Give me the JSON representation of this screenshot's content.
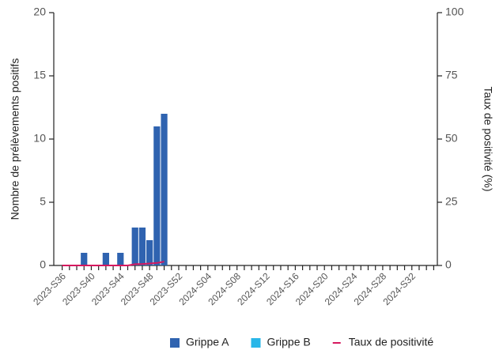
{
  "chart_data": {
    "type": "bar",
    "y_label": "Nombre de prélèvements positifs",
    "y2_label": "Taux de positivité (%)",
    "categories": [
      "2023-S36",
      null,
      null,
      null,
      "2023-S40",
      null,
      null,
      null,
      "2023-S44",
      null,
      null,
      null,
      "2023-S48",
      null,
      null,
      null,
      "2023-S52",
      null,
      null,
      null,
      "2024-S04",
      null,
      null,
      null,
      "2024-S08",
      null,
      null,
      null,
      "2024-S12",
      null,
      null,
      null,
      "2024-S16",
      null,
      null,
      null,
      "2024-S20",
      null,
      null,
      null,
      "2024-S24",
      null,
      null,
      null,
      "2024-S28",
      null,
      null,
      null,
      "2024-S32",
      null,
      null,
      null
    ],
    "series": [
      {
        "name": "Grippe A",
        "color": "#2f63b0",
        "values": [
          0,
          0,
          0,
          1,
          0,
          0,
          1,
          0,
          1,
          0,
          3,
          3,
          2,
          11,
          12,
          null,
          null,
          null,
          null,
          null,
          null,
          null,
          null,
          null,
          null,
          null,
          null,
          null,
          null,
          null,
          null,
          null,
          null,
          null,
          null,
          null,
          null,
          null,
          null,
          null,
          null,
          null,
          null,
          null,
          null,
          null,
          null,
          null,
          null,
          null,
          null,
          null
        ]
      },
      {
        "name": "Grippe B",
        "color": "#29b6e8",
        "values": [
          0,
          0,
          0,
          0,
          0,
          0,
          0,
          0,
          0,
          0,
          0,
          0,
          0,
          0,
          0,
          null,
          null,
          null,
          null,
          null,
          null,
          null,
          null,
          null,
          null,
          null,
          null,
          null,
          null,
          null,
          null,
          null,
          null,
          null,
          null,
          null,
          null,
          null,
          null,
          null,
          null,
          null,
          null,
          null,
          null,
          null,
          null,
          null,
          null,
          null,
          null,
          null
        ]
      },
      {
        "name": "Taux de positivité",
        "color": "#d6185e",
        "type": "line",
        "axis": "y2",
        "values": [
          0,
          0,
          0,
          0,
          0,
          0,
          0,
          0,
          0,
          0,
          0.5,
          0.6,
          0.8,
          1,
          1.5,
          null,
          null,
          null,
          null,
          null,
          null,
          null,
          null,
          null,
          null,
          null,
          null,
          null,
          null,
          null,
          null,
          null,
          null,
          null,
          null,
          null,
          null,
          null,
          null,
          null,
          null,
          null,
          null,
          null,
          null,
          null,
          null,
          null,
          null,
          null,
          null,
          null
        ]
      }
    ],
    "ylim": [
      0,
      20
    ],
    "yticks": [
      0,
      5,
      10,
      15,
      20
    ],
    "y2lim": [
      0,
      100
    ],
    "y2ticks": [
      0,
      25,
      50,
      75,
      100
    ],
    "stacked": true,
    "legend": "bottom"
  }
}
